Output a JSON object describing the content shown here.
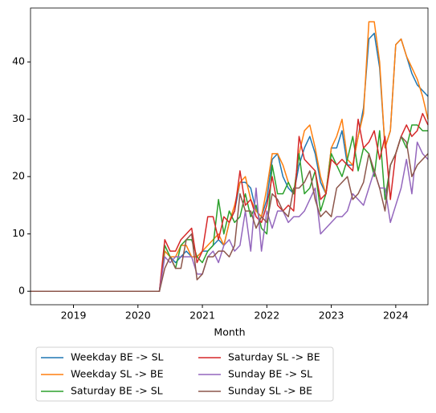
{
  "chart_data": {
    "type": "line",
    "xlabel": "Month",
    "x": [
      "2018-05",
      "2018-06",
      "2018-07",
      "2018-08",
      "2018-09",
      "2018-10",
      "2018-11",
      "2018-12",
      "2019-01",
      "2019-02",
      "2019-03",
      "2019-04",
      "2019-05",
      "2019-06",
      "2019-07",
      "2019-08",
      "2019-09",
      "2019-10",
      "2019-11",
      "2019-12",
      "2020-01",
      "2020-02",
      "2020-03",
      "2020-04",
      "2020-05",
      "2020-06",
      "2020-07",
      "2020-08",
      "2020-09",
      "2020-10",
      "2020-11",
      "2020-12",
      "2021-01",
      "2021-02",
      "2021-03",
      "2021-04",
      "2021-05",
      "2021-06",
      "2021-07",
      "2021-08",
      "2021-09",
      "2021-10",
      "2021-11",
      "2021-12",
      "2022-01",
      "2022-02",
      "2022-03",
      "2022-04",
      "2022-05",
      "2022-06",
      "2022-07",
      "2022-08",
      "2022-09",
      "2022-10",
      "2022-11",
      "2022-12",
      "2023-01",
      "2023-02",
      "2023-03",
      "2023-04",
      "2023-05",
      "2023-06",
      "2023-07",
      "2023-08",
      "2023-09",
      "2023-10",
      "2023-11",
      "2023-12",
      "2024-01",
      "2024-02",
      "2024-03",
      "2024-04",
      "2024-05",
      "2024-06",
      "2024-07"
    ],
    "series": [
      {
        "name": "Weekday BE -> SL",
        "color": "#1f77b4",
        "values": [
          0,
          0,
          0,
          0,
          0,
          0,
          0,
          0,
          0,
          0,
          0,
          0,
          0,
          0,
          0,
          0,
          0,
          0,
          0,
          0,
          0,
          0,
          0,
          0,
          0,
          7,
          6,
          5,
          6,
          7,
          6,
          6,
          7,
          7,
          8,
          9,
          8,
          12,
          14,
          19,
          19,
          18,
          14,
          13,
          16,
          23,
          24,
          20,
          18,
          17,
          22,
          25,
          27,
          24,
          19,
          17,
          25,
          25,
          28,
          22,
          22,
          27,
          32,
          44,
          45,
          39,
          25,
          28,
          43,
          44,
          41,
          38,
          36,
          35,
          34
        ]
      },
      {
        "name": "Weekday SL -> BE",
        "color": "#ff7f0e",
        "values": [
          0,
          0,
          0,
          0,
          0,
          0,
          0,
          0,
          0,
          0,
          0,
          0,
          0,
          0,
          0,
          0,
          0,
          0,
          0,
          0,
          0,
          0,
          0,
          0,
          0,
          7,
          6,
          6,
          8,
          8,
          6,
          6,
          7,
          8,
          9,
          10,
          8,
          12,
          15,
          19,
          20,
          16,
          14,
          13,
          18,
          24,
          24,
          22,
          19,
          17,
          24,
          28,
          29,
          25,
          20,
          17,
          25,
          27,
          30,
          23,
          22,
          27,
          31,
          47,
          47,
          40,
          25,
          28,
          43,
          44,
          41,
          39,
          37,
          34,
          30
        ]
      },
      {
        "name": "Saturday BE -> SL",
        "color": "#2ca02c",
        "values": [
          0,
          0,
          0,
          0,
          0,
          0,
          0,
          0,
          0,
          0,
          0,
          0,
          0,
          0,
          0,
          0,
          0,
          0,
          0,
          0,
          0,
          0,
          0,
          0,
          0,
          8,
          6,
          4,
          8,
          9,
          9,
          6,
          5,
          7,
          8,
          16,
          10,
          14,
          12,
          13,
          17,
          13,
          15,
          11,
          10,
          22,
          17,
          17,
          19,
          17,
          24,
          17,
          18,
          21,
          14,
          17,
          24,
          22,
          20,
          23,
          27,
          21,
          25,
          24,
          20,
          28,
          16,
          22,
          24,
          27,
          25,
          29,
          29,
          28,
          28
        ]
      },
      {
        "name": "Saturday SL -> BE",
        "color": "#d62728",
        "values": [
          0,
          0,
          0,
          0,
          0,
          0,
          0,
          0,
          0,
          0,
          0,
          0,
          0,
          0,
          0,
          0,
          0,
          0,
          0,
          0,
          0,
          0,
          0,
          0,
          0,
          9,
          7,
          7,
          9,
          10,
          11,
          5,
          7,
          13,
          13,
          9,
          13,
          12,
          14,
          21,
          15,
          16,
          13,
          12,
          15,
          20,
          15,
          14,
          15,
          14,
          27,
          23,
          22,
          21,
          16,
          17,
          23,
          22,
          23,
          22,
          21,
          30,
          25,
          26,
          28,
          23,
          27,
          16,
          24,
          27,
          29,
          27,
          28,
          31,
          29
        ]
      },
      {
        "name": "Sunday BE -> SL",
        "color": "#9467bd",
        "values": [
          0,
          0,
          0,
          0,
          0,
          0,
          0,
          0,
          0,
          0,
          0,
          0,
          0,
          0,
          0,
          0,
          0,
          0,
          0,
          0,
          0,
          0,
          0,
          0,
          0,
          6,
          5,
          6,
          6,
          6,
          6,
          3,
          3,
          6,
          7,
          5,
          8,
          9,
          7,
          8,
          14,
          7,
          18,
          7,
          14,
          11,
          14,
          14,
          12,
          13,
          13,
          14,
          16,
          18,
          10,
          11,
          12,
          13,
          13,
          14,
          17,
          16,
          15,
          18,
          21,
          18,
          18,
          12,
          15,
          18,
          23,
          17,
          26,
          24,
          23
        ]
      },
      {
        "name": "Sunday SL -> BE",
        "color": "#8c564b",
        "values": [
          0,
          0,
          0,
          0,
          0,
          0,
          0,
          0,
          0,
          0,
          0,
          0,
          0,
          0,
          0,
          0,
          0,
          0,
          0,
          0,
          0,
          0,
          0,
          0,
          0,
          4,
          6,
          4,
          4,
          9,
          10,
          2,
          3,
          6,
          6,
          7,
          7,
          6,
          8,
          17,
          14,
          14,
          11,
          13,
          12,
          17,
          16,
          14,
          13,
          18,
          18,
          19,
          21,
          16,
          13,
          14,
          13,
          18,
          19,
          20,
          16,
          17,
          19,
          24,
          21,
          18,
          14,
          22,
          24,
          27,
          26,
          20,
          22,
          23,
          24
        ]
      }
    ],
    "xlim": [
      "2018-05",
      "2024-07"
    ],
    "xticks": [
      {
        "value": "2019-01",
        "label": "2019"
      },
      {
        "value": "2020-01",
        "label": "2020"
      },
      {
        "value": "2021-01",
        "label": "2021"
      },
      {
        "value": "2022-01",
        "label": "2022"
      },
      {
        "value": "2023-01",
        "label": "2023"
      },
      {
        "value": "2024-01",
        "label": "2024"
      }
    ],
    "ylim": [
      -2.35,
      49.4
    ],
    "yticks": [
      0,
      10,
      20,
      30,
      40
    ],
    "legend": "lower center",
    "legend_columns": 2
  }
}
